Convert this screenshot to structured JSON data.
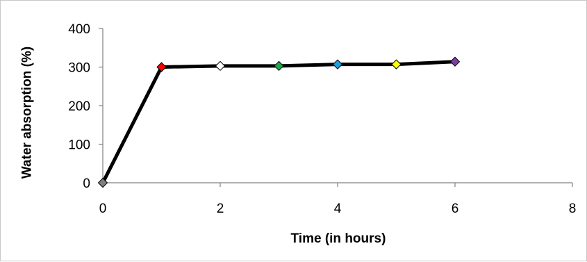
{
  "chart_data": {
    "type": "line",
    "title": "",
    "xlabel": "Time (in hours)",
    "ylabel": "Water absorption (%)",
    "xlim": [
      0,
      8
    ],
    "ylim": [
      0,
      400
    ],
    "x_ticks": [
      "0",
      "2",
      "4",
      "6",
      "8"
    ],
    "y_ticks": [
      "0",
      "100",
      "200",
      "300",
      "400"
    ],
    "grid": false,
    "legend": "none",
    "line_color": "#000000",
    "series": [
      {
        "x": [
          0,
          1,
          2,
          3,
          4,
          5,
          6
        ],
        "y": [
          0,
          300,
          303,
          303,
          307,
          307,
          314
        ],
        "marker": "diamond",
        "marker_colors": [
          "#7f7f7f",
          "#ff0000",
          "#ffffff",
          "#1fa84a",
          "#1ea0e0",
          "#ffff00",
          "#7b3fa0"
        ]
      }
    ]
  }
}
